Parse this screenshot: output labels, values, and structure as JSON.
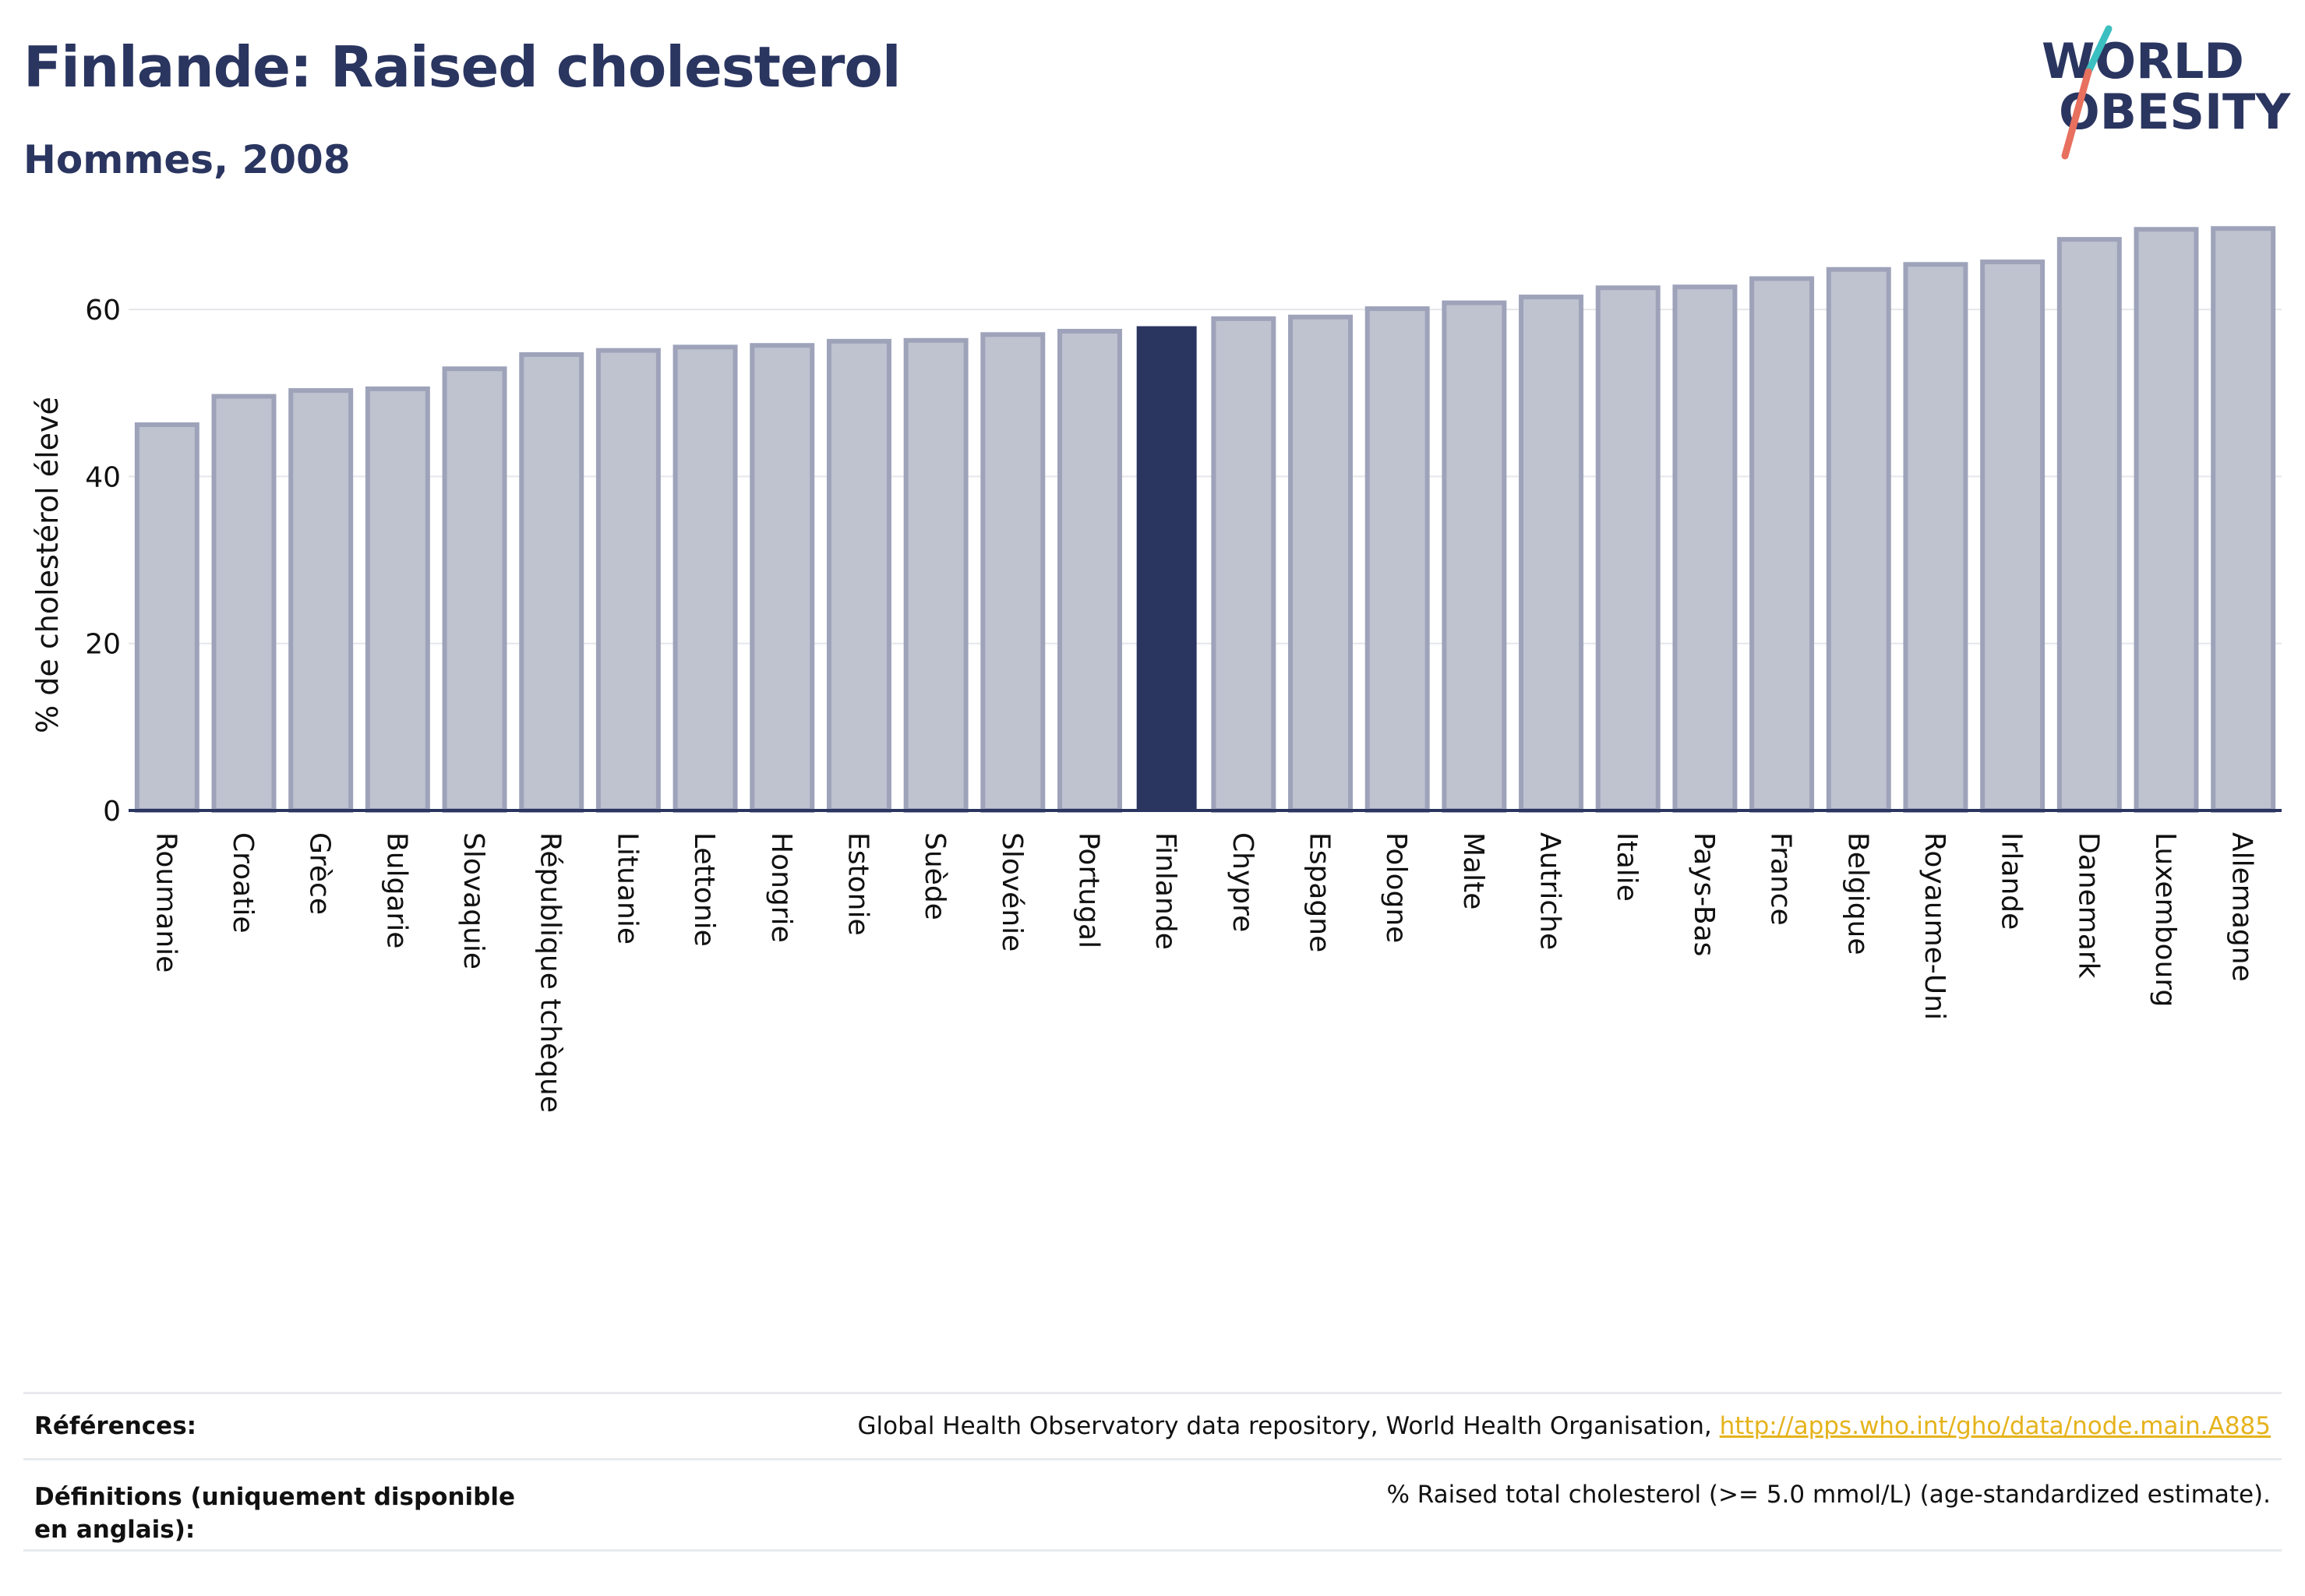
{
  "header": {
    "title": "Finlande: Raised cholesterol",
    "subtitle": "Hommes, 2008"
  },
  "logo": {
    "line1": "WORLD",
    "line2": "OBESITY"
  },
  "chart_data": {
    "type": "bar",
    "title": "Finlande: Raised cholesterol",
    "subtitle": "Hommes, 2008",
    "ylabel": "% de cholestérol élevé",
    "xlabel": "",
    "ylim": [
      0,
      70
    ],
    "yticks": [
      0,
      20,
      40,
      60
    ],
    "grid": true,
    "highlight": "Finlande",
    "categories": [
      "Roumanie",
      "Croatie",
      "Grèce",
      "Bulgarie",
      "Slovaquie",
      "République tchèque",
      "Lituanie",
      "Lettonie",
      "Hongrie",
      "Estonie",
      "Suède",
      "Slovénie",
      "Portugal",
      "Finlande",
      "Chypre",
      "Espagne",
      "Pologne",
      "Malte",
      "Autriche",
      "Italie",
      "Pays-Bas",
      "France",
      "Belgique",
      "Royaume-Uni",
      "Irlande",
      "Danemark",
      "Luxembourg",
      "Allemagne"
    ],
    "values": [
      46.2,
      49.6,
      50.3,
      50.5,
      52.9,
      54.6,
      55.1,
      55.5,
      55.7,
      56.2,
      56.3,
      57.0,
      57.4,
      58.0,
      58.9,
      59.1,
      60.1,
      60.8,
      61.5,
      62.6,
      62.7,
      63.7,
      64.8,
      65.4,
      65.7,
      68.4,
      69.6,
      69.7
    ],
    "colors": {
      "bar": "#2a3560",
      "bar_faded": "#bfc2cf",
      "bar_outline": "#9ea3ba",
      "grid": "#e6e7ec",
      "axis": "#2a3560"
    }
  },
  "footer": {
    "references_label": "Références:",
    "references_text": "Global Health Observatory data repository, World Health Organisation, ",
    "references_link": "http://apps.who.int/gho/data/node.main.A885",
    "definitions_label": "Définitions (uniquement disponible en anglais):",
    "definitions_text": "% Raised total cholesterol (>= 5.0 mmol/L) (age-standardized estimate)."
  }
}
